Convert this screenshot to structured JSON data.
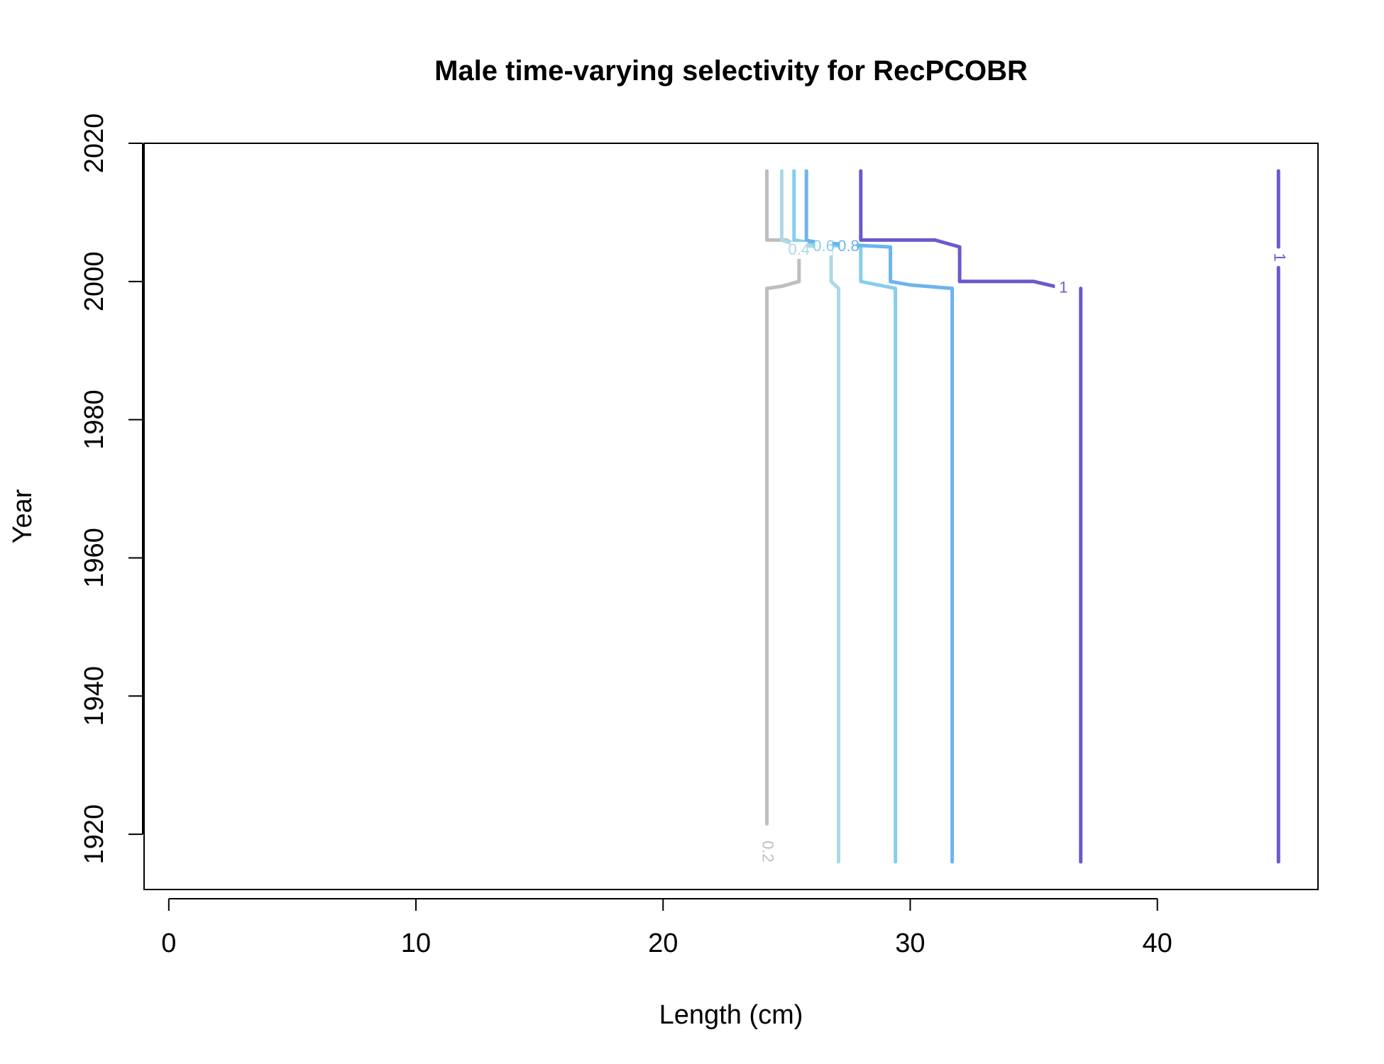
{
  "chart_data": {
    "type": "contour",
    "title": "Male time-varying selectivity for RecPCOBR",
    "xlabel": "Length (cm)",
    "ylabel": "Year",
    "xlim": [
      -1,
      46.5
    ],
    "ylim": [
      1912,
      2020
    ],
    "xticks": [
      0,
      10,
      20,
      30,
      40
    ],
    "yticks": [
      1920,
      1940,
      1960,
      1980,
      2000,
      2020
    ],
    "grid": false,
    "levels": [
      {
        "level": "0.2",
        "color": "#BEBEBE",
        "label_at": [
          24.2,
          1917.5
        ],
        "label_rotation": 90,
        "segments": [
          [
            [
              24.2,
              1921.5
            ],
            [
              24.2,
              1999
            ],
            [
              24.8,
              1999.3
            ],
            [
              25.5,
              2000
            ],
            [
              25.5,
              2005
            ],
            [
              25,
              2006
            ],
            [
              24.2,
              2006
            ],
            [
              24.2,
              2016
            ]
          ]
        ]
      },
      {
        "level": "0.4",
        "color": "#ADD8E6",
        "label_at": [
          25.5,
          2004.5
        ],
        "label_rotation": 0,
        "segments": [
          [
            [
              27.1,
              1916
            ],
            [
              27.1,
              1999
            ],
            [
              26.8,
              2000
            ],
            [
              26.8,
              2005
            ],
            [
              25.5,
              2005.2
            ],
            [
              24.8,
              2006
            ],
            [
              24.8,
              2016
            ]
          ]
        ]
      },
      {
        "level": "0.6",
        "color": "#87CEEB",
        "label_at": [
          26.5,
          2005
        ],
        "label_rotation": 0,
        "segments": [
          [
            [
              29.4,
              1916
            ],
            [
              29.4,
              1999
            ],
            [
              28,
              2000
            ],
            [
              28,
              2005
            ],
            [
              26.5,
              2005.3
            ],
            [
              25.3,
              2006
            ],
            [
              25.3,
              2016
            ]
          ]
        ]
      },
      {
        "level": "0.8",
        "color": "#6CB4EE",
        "label_at": [
          27.5,
          2005
        ],
        "label_rotation": 0,
        "segments": [
          [
            [
              31.7,
              1916
            ],
            [
              31.7,
              1999
            ],
            [
              30,
              1999.5
            ],
            [
              29.2,
              2000
            ],
            [
              29.2,
              2005
            ],
            [
              27.5,
              2005.3
            ],
            [
              26,
              2005.8
            ],
            [
              25.8,
              2006
            ],
            [
              25.8,
              2016
            ]
          ]
        ]
      },
      {
        "level": "1",
        "color": "#6A5ACD",
        "label_at": [
          36.2,
          1999
        ],
        "label_rotation": 0,
        "segments": [
          [
            [
              36.9,
              1916
            ],
            [
              36.9,
              1999
            ]
          ],
          [
            [
              36.2,
              1999
            ],
            [
              35,
              2000
            ],
            [
              32,
              2000
            ],
            [
              32,
              2005
            ],
            [
              31,
              2006
            ],
            [
              28,
              2006
            ],
            [
              28,
              2016
            ]
          ]
        ]
      },
      {
        "level": "1",
        "color": "#6A5ACD",
        "label_at": [
          44.9,
          2003.5
        ],
        "label_rotation": 90,
        "segments": [
          [
            [
              44.9,
              1916
            ],
            [
              44.9,
              2002
            ]
          ],
          [
            [
              44.9,
              2005
            ],
            [
              44.9,
              2016
            ]
          ]
        ]
      }
    ]
  }
}
